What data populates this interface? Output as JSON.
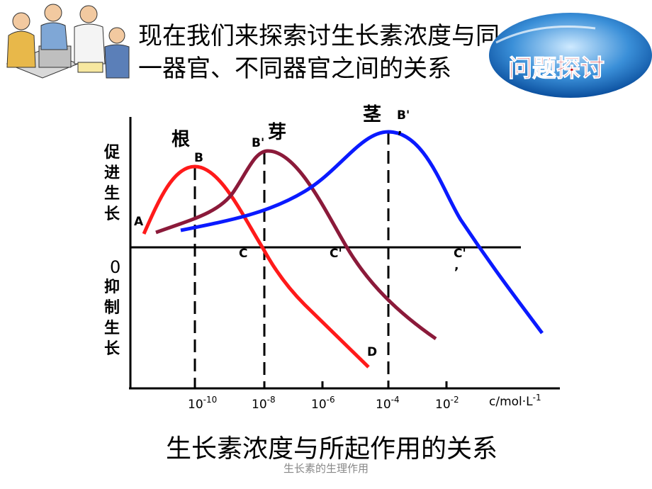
{
  "title_lines": [
    "现在我们来探索讨生长素浓度与同",
    "一器官、不同器官之间的关系"
  ],
  "badge": "问题探讨",
  "y_label_top": "促进生长",
  "y_label_bottom": "抑制生长",
  "zero_label": "0",
  "curve_labels": {
    "root": "根",
    "bud": "芽",
    "stem": "茎"
  },
  "point_labels": {
    "A": "A",
    "B": "B",
    "B1": "B'",
    "B2": "B'",
    "C": "C",
    "C1": "C'",
    "C2": "C'",
    "D": "D",
    "mark": ","
  },
  "x_ticks": [
    {
      "base": "10",
      "exp": "-10"
    },
    {
      "base": "10",
      "exp": "-8"
    },
    {
      "base": "10",
      "exp": "-6"
    },
    {
      "base": "10",
      "exp": "-4"
    },
    {
      "base": "10",
      "exp": "-2"
    }
  ],
  "x_unit": {
    "base": "c/mol·L",
    "exp": "-1"
  },
  "caption": "生长素浓度与所起作用的关系",
  "footer": "生长素的生理作用"
}
